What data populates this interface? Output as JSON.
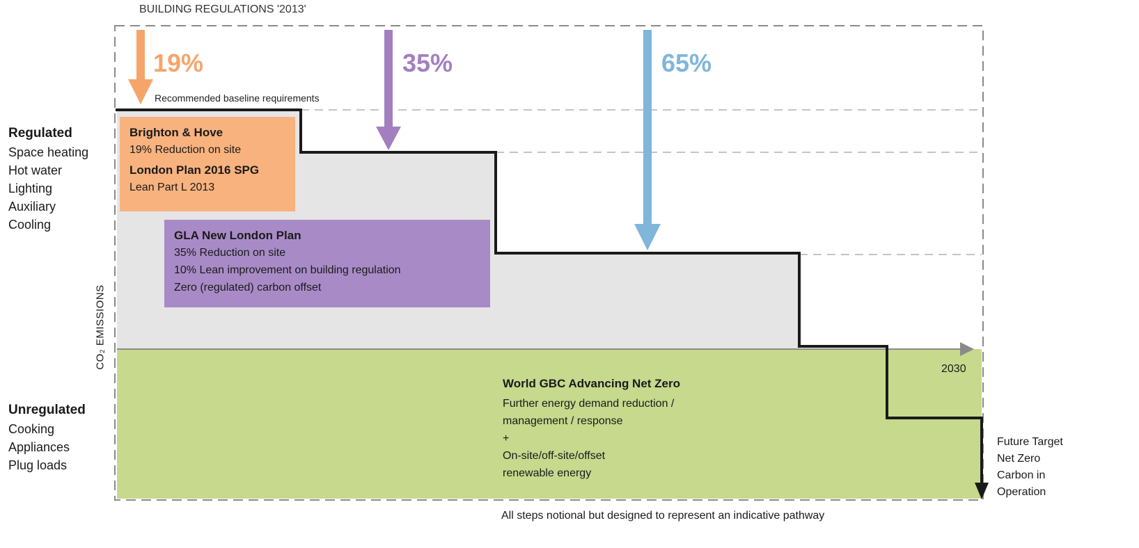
{
  "title": "BUILDING REGULATIONS '2013'",
  "baseline_note": "Recommended baseline requirements",
  "y_axis_label": "CO₂ EMISSIONS",
  "x_axis_label": "2030",
  "colors": {
    "orange": "#f5a56a",
    "orange_box": "#f8b27e",
    "purple": "#a37fc0",
    "purple_box": "#a88bc6",
    "blue": "#7fb6d9",
    "green": "#c6d98d",
    "grey_fill": "#e5e5e5",
    "step_line": "#1a1a1a"
  },
  "arrows": [
    {
      "percent": "19%",
      "color": "#f5a56a"
    },
    {
      "percent": "35%",
      "color": "#a37fc0"
    },
    {
      "percent": "65%",
      "color": "#7fb6d9"
    }
  ],
  "regulated": {
    "heading": "Regulated",
    "items": [
      "Space heating",
      "Hot water",
      "Lighting",
      "Auxiliary",
      "Cooling"
    ]
  },
  "unregulated": {
    "heading": "Unregulated",
    "items": [
      "Cooking",
      "Appliances",
      "Plug loads"
    ]
  },
  "boxes": {
    "orange": {
      "title1": "Brighton & Hove",
      "line1": "19% Reduction on site",
      "title2": "London Plan 2016 SPG",
      "line2": "Lean Part L 2013"
    },
    "purple": {
      "title": "GLA New London Plan",
      "lines": [
        "35% Reduction on site",
        "10% Lean improvement on building regulation",
        "Zero (regulated) carbon offset"
      ]
    },
    "green": {
      "title": "World GBC Advancing Net Zero",
      "lines": [
        "Further energy demand reduction /",
        "management / response",
        "+",
        "On-site/off-site/offset",
        "renewable energy"
      ]
    }
  },
  "future_target": [
    "Future Target",
    "Net Zero",
    "Carbon in",
    "Operation"
  ],
  "footnote": "All steps notional but designed to represent an indicative pathway"
}
